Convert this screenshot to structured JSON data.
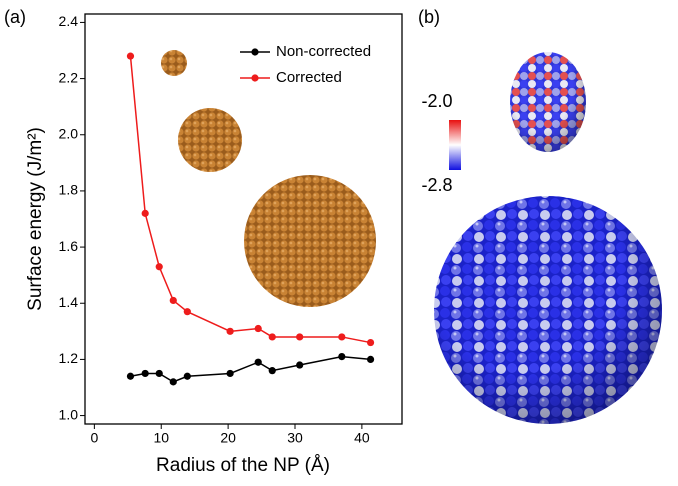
{
  "chart_data": {
    "type": "line",
    "panel_label": "(a)",
    "xlabel": "Radius of the NP (Å)",
    "ylabel": "Surface energy (J/m²)",
    "xlim": [
      -1.4,
      46
    ],
    "ylim": [
      0.97,
      2.43
    ],
    "xticks": [
      0,
      10,
      20,
      30,
      40
    ],
    "yticks": [
      {
        "value": 1,
        "label": "1.0"
      },
      1.2,
      1.4,
      1.6,
      1.8,
      {
        "value": 2,
        "label": "2.0"
      },
      2.2,
      2.4
    ],
    "legend": "upper right",
    "series": [
      {
        "name": "Non-corrected",
        "color": "#000000",
        "x": [
          5.4,
          7.6,
          9.7,
          11.8,
          13.9,
          20.3,
          24.5,
          26.6,
          30.7,
          37.0,
          41.3
        ],
        "values": [
          1.14,
          1.15,
          1.15,
          1.12,
          1.14,
          1.15,
          1.19,
          1.16,
          1.18,
          1.21,
          1.2
        ]
      },
      {
        "name": "Corrected",
        "color": "#ee1c1c",
        "x": [
          5.4,
          7.6,
          9.7,
          11.8,
          13.9,
          20.3,
          24.5,
          26.6,
          30.7,
          37.0,
          41.3
        ],
        "values": [
          2.28,
          1.72,
          1.53,
          1.41,
          1.37,
          1.3,
          1.31,
          1.28,
          1.28,
          1.28,
          1.26
        ]
      }
    ]
  },
  "panel_b": {
    "label": "(b)",
    "colorbar_labels": [
      "-2.0",
      "-2.8"
    ]
  }
}
